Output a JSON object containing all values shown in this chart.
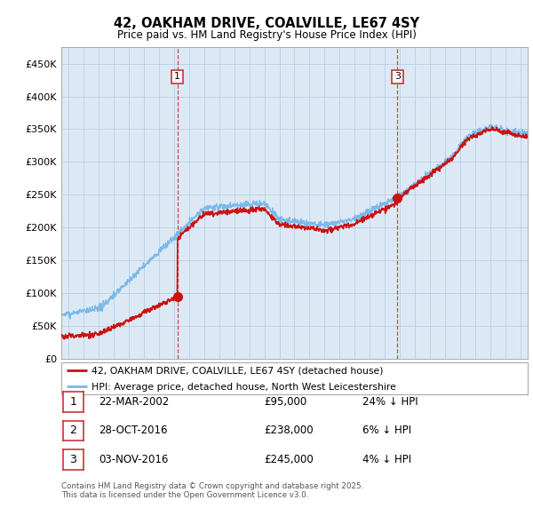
{
  "title": "42, OAKHAM DRIVE, COALVILLE, LE67 4SY",
  "subtitle": "Price paid vs. HM Land Registry's House Price Index (HPI)",
  "legend_line1": "42, OAKHAM DRIVE, COALVILLE, LE67 4SY (detached house)",
  "legend_line2": "HPI: Average price, detached house, North West Leicestershire",
  "ylabel_ticks": [
    "£0",
    "£50K",
    "£100K",
    "£150K",
    "£200K",
    "£250K",
    "£300K",
    "£350K",
    "£400K",
    "£450K"
  ],
  "ylim_max": 475000,
  "xlim_start": 1994.5,
  "xlim_end": 2025.5,
  "transactions": [
    {
      "num": 1,
      "date": "22-MAR-2002",
      "price": 95000,
      "price_str": "£95,000",
      "label": "24% ↓ HPI",
      "year": 2002.22
    },
    {
      "num": 2,
      "date": "28-OCT-2016",
      "price": 238000,
      "price_str": "£238,000",
      "label": "6% ↓ HPI",
      "year": 2016.82
    },
    {
      "num": 3,
      "date": "03-NOV-2016",
      "price": 245000,
      "price_str": "£245,000",
      "label": "4% ↓ HPI",
      "year": 2016.84
    }
  ],
  "hpi_color": "#7ab8e8",
  "paid_color": "#cc1111",
  "vline_color": "#cc3333",
  "background_color": "#dce9f5",
  "grid_color": "#b0c8e0",
  "footnote_line1": "Contains HM Land Registry data © Crown copyright and database right 2025.",
  "footnote_line2": "This data is licensed under the Open Government Licence v3.0."
}
